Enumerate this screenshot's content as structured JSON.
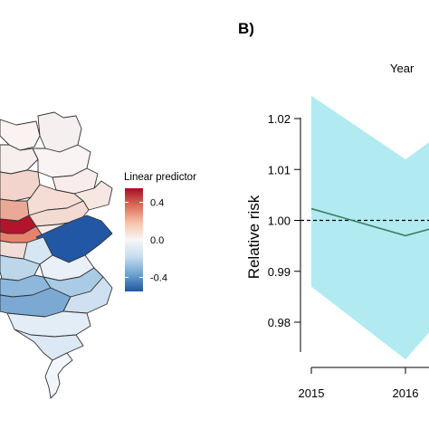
{
  "panel_b_label": "B)",
  "map_legend": {
    "title": "Linear predictor",
    "ticks": [
      {
        "value": 0.4,
        "label": "0.4"
      },
      {
        "value": 0.0,
        "label": "0.0"
      },
      {
        "value": -0.4,
        "label": "-0.4"
      }
    ],
    "range": [
      -0.55,
      0.55
    ],
    "colors": [
      "#2156a3",
      "#6da3d0",
      "#c6dbef",
      "#f7f7f7",
      "#f6c3a8",
      "#dd6b58",
      "#a50f26"
    ]
  },
  "chart_data": {
    "type": "line",
    "title": "Year",
    "xlabel": "",
    "ylabel": "Relative risk",
    "x_ticks": [
      2015,
      2016
    ],
    "y_ticks": [
      0.98,
      0.99,
      1.0,
      1.01,
      1.02
    ],
    "xlim": [
      2014.95,
      2016.3
    ],
    "ylim": [
      0.9752,
      1.0265
    ],
    "reference_line": 1.0,
    "series": [
      {
        "x": [
          2015,
          2016,
          2016.3
        ],
        "y": [
          1.0023,
          0.997,
          0.9985
        ],
        "lower": [
          0.987,
          0.9727,
          0.979
        ],
        "upper": [
          1.0245,
          1.012,
          1.016
        ]
      }
    ],
    "band_color": "#b1ebf1",
    "line_color": "#3d7d62"
  }
}
